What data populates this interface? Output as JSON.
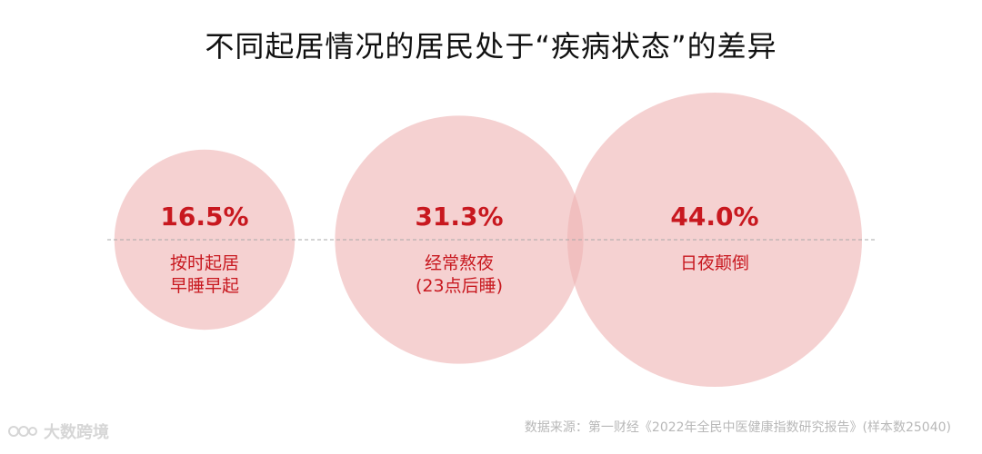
{
  "title": "不同起居情况的居民处于“疾病状态”的差异",
  "chart_data": {
    "type": "bubble",
    "title": "不同起居情况的居民处于“疾病状态”的差异",
    "unit": "%",
    "series": [
      {
        "label_lines": [
          "按时起居",
          "早睡早起"
        ],
        "value": 16.5,
        "value_label": "16.5%"
      },
      {
        "label_lines": [
          "经常熬夜",
          "(23点后睡)"
        ],
        "value": 31.3,
        "value_label": "31.3%"
      },
      {
        "label_lines": [
          "日夜颠倒"
        ],
        "value": 44.0,
        "value_label": "44.0%"
      }
    ]
  },
  "colors": {
    "bubble_fill": "#efb3b3",
    "bubble_opacity": "0.6",
    "value_text": "#c8181f",
    "label_text": "#c8181f",
    "divider": "#a9a9a9"
  },
  "source": "数据来源：第一财经《2022年全民中医健康指数研究报告》(样本数25040)",
  "watermark": {
    "text": "大数跨境"
  }
}
